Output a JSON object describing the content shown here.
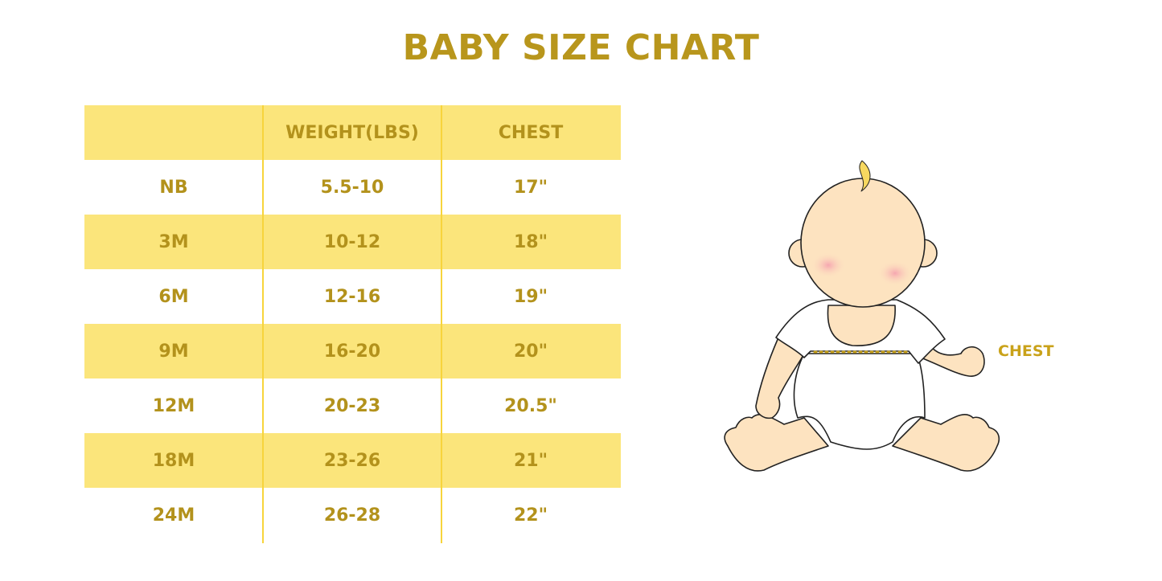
{
  "title": "BABY SIZE CHART",
  "table": {
    "headers": [
      "",
      "WEIGHT(LBS)",
      "CHEST"
    ],
    "rows": [
      [
        "NB",
        "5.5-10",
        "17\""
      ],
      [
        "3M",
        "10-12",
        "18\""
      ],
      [
        "6M",
        "12-16",
        "19\""
      ],
      [
        "9M",
        "16-20",
        "20\""
      ],
      [
        "12M",
        "20-23",
        "20.5\""
      ],
      [
        "18M",
        "23-26",
        "21\""
      ],
      [
        "24M",
        "26-28",
        "22\""
      ]
    ]
  },
  "illustration": {
    "chest_label": "CHEST"
  },
  "colors": {
    "accent": "#b3921c",
    "band": "#fbe57b",
    "divider": "#f7d43c"
  }
}
